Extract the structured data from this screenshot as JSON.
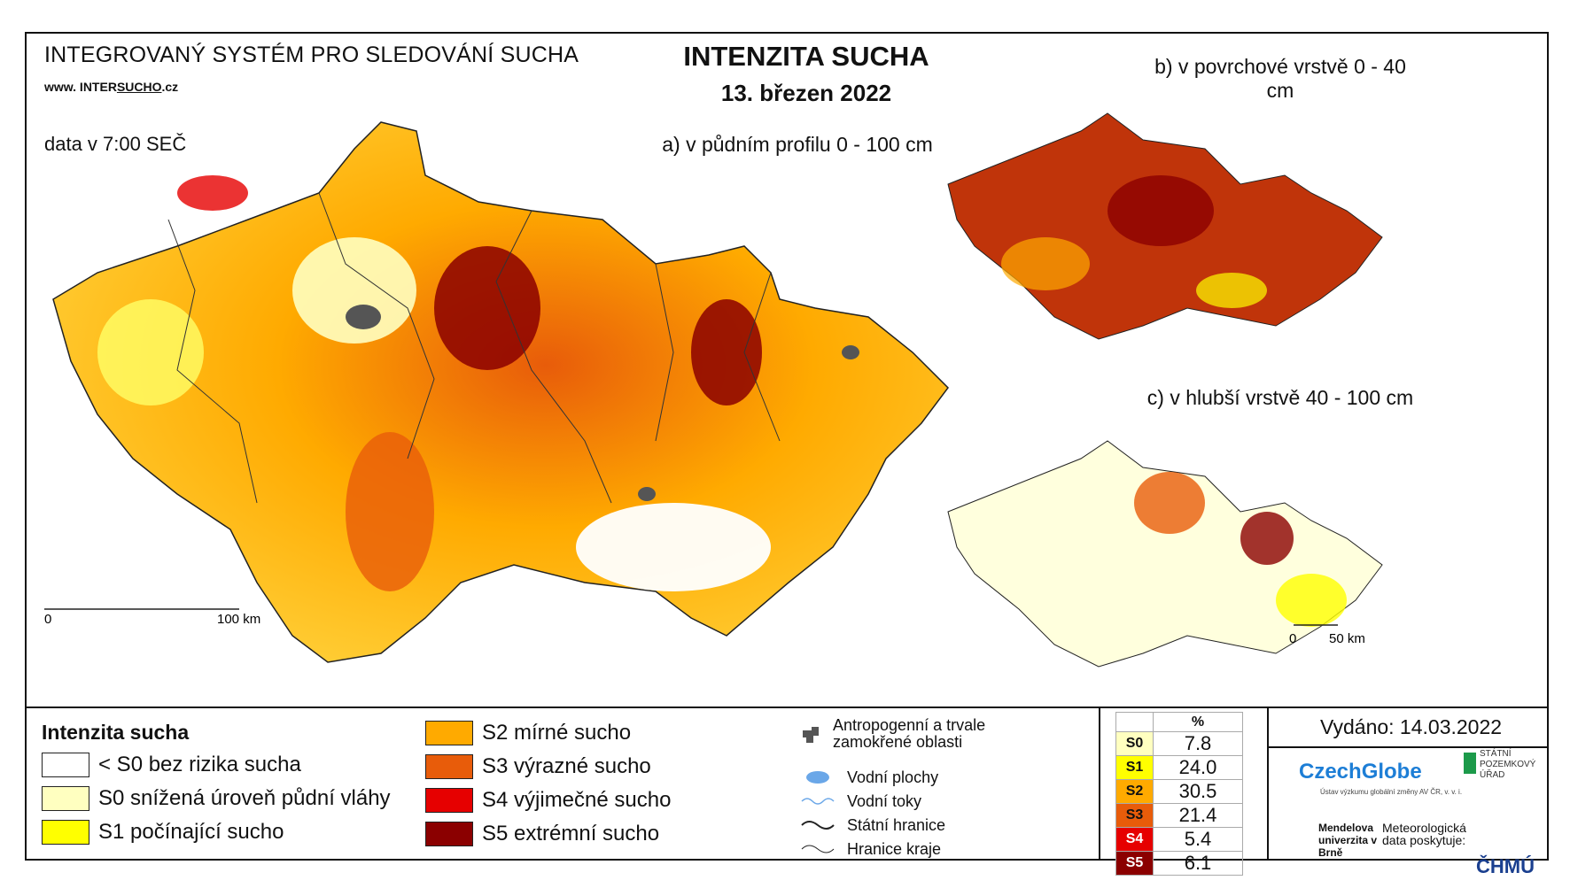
{
  "header": {
    "system_title": "INTEGROVANÝ SYSTÉM PRO SLEDOVÁNÍ SUCHA",
    "url_prefix": "www. INTER",
    "url_brand": "SUCHO",
    "url_suffix": ".cz",
    "data_time": "data v 7:00 SEČ",
    "title": "INTENZITA SUCHA",
    "date": "13. březen 2022"
  },
  "maps": {
    "a_title": "a) v půdním profilu 0 - 100 cm",
    "b_title": "b) v povrchové vrstvě 0 - 40 cm",
    "c_title": "c) v hlubší vrstvě 40 - 100 cm",
    "scale_a_start": "0",
    "scale_a_end": "100 km",
    "scale_c_start": "0",
    "scale_c_end": "50 km"
  },
  "legend": {
    "title": "Intenzita sucha",
    "classes": [
      {
        "label": "< S0 bez rizika sucha",
        "color": "#ffffff"
      },
      {
        "label": "S0 snížená úroveň půdní vláhy",
        "color": "#ffffc0"
      },
      {
        "label": "S1 počínající sucho",
        "color": "#ffff00"
      },
      {
        "label": "S2 mírné sucho",
        "color": "#ffaa00"
      },
      {
        "label": "S3 výrazné sucho",
        "color": "#e85c0a"
      },
      {
        "label": "S4 výjimečné sucho",
        "color": "#e60000"
      },
      {
        "label": "S5 extrémní sucho",
        "color": "#8b0000"
      }
    ],
    "symbols": [
      {
        "label": "Antropogenní a trvale zamokřené oblasti",
        "icon": "urban-area-icon"
      },
      {
        "label": "Vodní plochy",
        "icon": "water-body-icon"
      },
      {
        "label": "Vodní toky",
        "icon": "river-icon"
      },
      {
        "label": "Státní hranice",
        "icon": "state-border-icon"
      },
      {
        "label": "Hranice kraje",
        "icon": "region-border-icon"
      }
    ]
  },
  "percent_table": {
    "header": "%",
    "rows": [
      {
        "code": "S0",
        "value": "7.8",
        "color": "#ffffc0"
      },
      {
        "code": "S1",
        "value": "24.0",
        "color": "#ffff00"
      },
      {
        "code": "S2",
        "value": "30.5",
        "color": "#ffaa00"
      },
      {
        "code": "S3",
        "value": "21.4",
        "color": "#e85c0a"
      },
      {
        "code": "S4",
        "value": "5.4",
        "color": "#e60000"
      },
      {
        "code": "S5",
        "value": "6.1",
        "color": "#8b0000"
      }
    ]
  },
  "footer": {
    "issued": "Vydáno: 14.03.2022",
    "czechglobe": "CzechGlobe",
    "czechglobe_sub": "Ústav výzkumu globální změny AV ČR, v. v. i.",
    "spu": "STÁTNÍ POZEMKOVÝ ÚŘAD",
    "mendel": "Mendelova univerzita v Brně",
    "meteo": "Meteorologická data poskytuje:",
    "chmu": "ČHMÚ"
  }
}
